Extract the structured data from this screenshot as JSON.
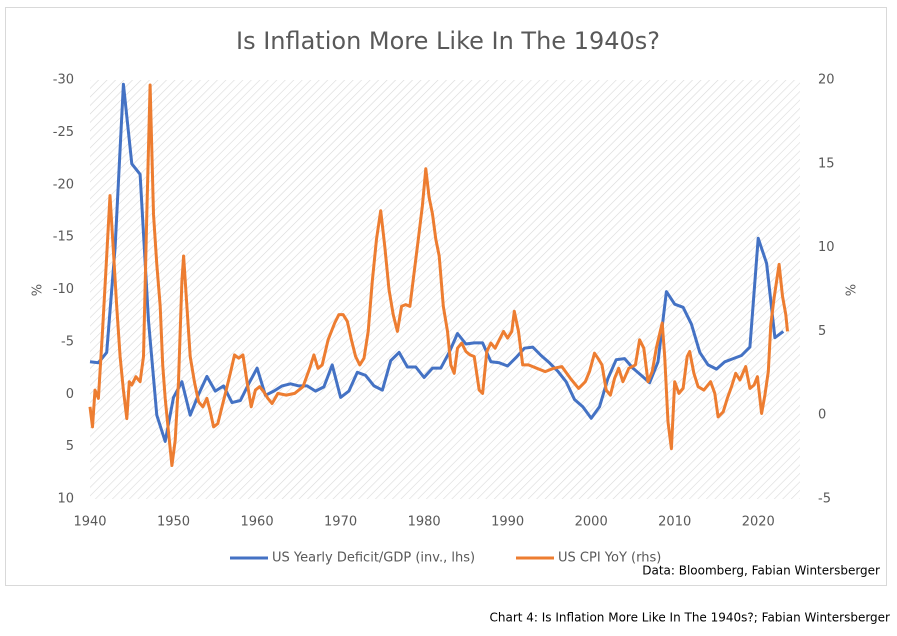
{
  "chart_data": {
    "type": "line",
    "title": "Is Inflation More Like In The 1940s?",
    "source": "Data: Bloomberg, Fabian Wintersberger",
    "caption": "Chart 4: Is Inflation More Like In The 1940s?; Fabian Wintersberger",
    "y_label": "%",
    "y2_label": "%",
    "xlim": [
      1940,
      2025
    ],
    "xticks": [
      1940,
      1950,
      1960,
      1970,
      1980,
      1990,
      2000,
      2010,
      2020
    ],
    "ylim": [
      -30,
      10
    ],
    "y_inverted": true,
    "yticks": [
      -30,
      -25,
      -20,
      -15,
      -10,
      -5,
      0,
      5,
      10
    ],
    "y2lim": [
      -5,
      20
    ],
    "y2ticks": [
      -5,
      0,
      5,
      10,
      15,
      20
    ],
    "grid": false,
    "legend": "bottom",
    "series": [
      {
        "name": "US Yearly Deficit/GDP (inv., lhs)",
        "color": "#4472c4",
        "x": [
          1940,
          1941,
          1942,
          1943,
          1944,
          1945,
          1946,
          1947,
          1948,
          1949,
          1950,
          1951,
          1952,
          1953,
          1954,
          1955,
          1956,
          1957,
          1958,
          1959,
          1960,
          1961,
          1962,
          1963,
          1964,
          1965,
          1966,
          1967,
          1968,
          1969,
          1970,
          1971,
          1972,
          1973,
          1974,
          1975,
          1976,
          1977,
          1978,
          1979,
          1980,
          1981,
          1982,
          1983,
          1984,
          1985,
          1986,
          1987,
          1988,
          1989,
          1990,
          1991,
          1992,
          1993,
          1994,
          1995,
          1996,
          1997,
          1998,
          1999,
          2000,
          2001,
          2002,
          2003,
          2004,
          2005,
          2006,
          2007,
          2008,
          2009,
          2010,
          2011,
          2012,
          2013,
          2014,
          2015,
          2016,
          2017,
          2018,
          2019,
          2020,
          2021,
          2022,
          2023
        ],
        "values": [
          -3.1,
          -3.0,
          -4.0,
          -14,
          -29.6,
          -22,
          -21,
          -7,
          2,
          4.5,
          0.3,
          -1.2,
          2,
          0,
          -1.7,
          -0.3,
          -0.8,
          0.8,
          0.6,
          -1.0,
          -2.5,
          0.1,
          -0.3,
          -0.8,
          -1.0,
          -0.8,
          -0.8,
          -0.3,
          -0.7,
          -2.8,
          0.3,
          -0.3,
          -2.1,
          -1.8,
          -0.8,
          -0.4,
          -3.2,
          -4.0,
          -2.6,
          -2.6,
          -1.6,
          -2.5,
          -2.5,
          -4.0,
          -5.8,
          -4.8,
          -4.9,
          -4.9,
          -3.1,
          -3.0,
          -2.7,
          -3.5,
          -4.4,
          -4.5,
          -3.7,
          -3.0,
          -2.2,
          -1.2,
          0.5,
          1.2,
          2.3,
          1.2,
          -1.5,
          -3.3,
          -3.4,
          -2.5,
          -1.8,
          -1.1,
          -3.1,
          -9.8,
          -8.6,
          -8.3,
          -6.7,
          -4.0,
          -2.8,
          -2.4,
          -3.1,
          -3.4,
          -3.7,
          -4.5,
          -14.9,
          -12.5,
          -5.4,
          -6.0
        ]
      },
      {
        "name": "US CPI YoY (rhs)",
        "color": "#ed7d31",
        "axis": "y2",
        "x": [
          1940.0,
          1940.3,
          1940.6,
          1941.0,
          1941.5,
          1942.0,
          1942.4,
          1942.8,
          1943.2,
          1943.6,
          1944.0,
          1944.4,
          1944.7,
          1945.0,
          1945.5,
          1946.0,
          1946.4,
          1946.8,
          1947.2,
          1947.6,
          1948.0,
          1948.4,
          1948.7,
          1949.0,
          1949.4,
          1949.8,
          1950.2,
          1950.6,
          1951.0,
          1951.2,
          1951.6,
          1952.0,
          1952.5,
          1953.0,
          1953.5,
          1954.0,
          1954.4,
          1954.8,
          1955.3,
          1955.8,
          1956.3,
          1956.8,
          1957.3,
          1957.8,
          1958.3,
          1958.8,
          1959.3,
          1959.8,
          1960.3,
          1960.8,
          1961.3,
          1961.8,
          1962.5,
          1963.5,
          1964.5,
          1965.5,
          1966.3,
          1966.8,
          1967.3,
          1967.8,
          1968.5,
          1969.3,
          1969.8,
          1970.3,
          1970.8,
          1971.3,
          1971.8,
          1972.3,
          1972.8,
          1973.3,
          1973.8,
          1974.3,
          1974.8,
          1975.3,
          1975.8,
          1976.3,
          1976.8,
          1977.3,
          1977.8,
          1978.3,
          1978.8,
          1979.3,
          1979.8,
          1980.2,
          1980.6,
          1981.0,
          1981.4,
          1981.8,
          1982.3,
          1982.8,
          1983.2,
          1983.6,
          1984.0,
          1984.5,
          1985.0,
          1985.5,
          1986.0,
          1986.6,
          1987.0,
          1987.5,
          1988.0,
          1988.5,
          1989.0,
          1989.5,
          1990.0,
          1990.5,
          1990.8,
          1991.3,
          1991.8,
          1992.5,
          1993.5,
          1994.5,
          1995.5,
          1996.5,
          1997.5,
          1998.5,
          1999.3,
          1999.8,
          2000.4,
          2000.8,
          2001.3,
          2001.8,
          2002.3,
          2002.8,
          2003.3,
          2003.8,
          2004.5,
          2005.3,
          2005.8,
          2006.3,
          2006.8,
          2007.3,
          2007.8,
          2008.5,
          2008.8,
          2009.2,
          2009.6,
          2010.0,
          2010.5,
          2011.0,
          2011.5,
          2011.8,
          2012.3,
          2012.8,
          2013.5,
          2014.3,
          2014.8,
          2015.2,
          2015.8,
          2016.3,
          2016.8,
          2017.3,
          2017.8,
          2018.5,
          2019.0,
          2019.5,
          2019.9,
          2020.4,
          2020.8,
          2021.2,
          2021.5,
          2021.9,
          2022.5,
          2022.9,
          2023.3,
          2023.5
        ],
        "values": [
          0.5,
          -0.7,
          1.5,
          1.0,
          5.0,
          9.5,
          13.1,
          9.8,
          6.5,
          3.5,
          1.5,
          -0.2,
          2.0,
          1.8,
          2.3,
          2.0,
          3.5,
          12.0,
          19.7,
          12.0,
          9.0,
          6.5,
          3.0,
          1.0,
          -1.0,
          -3.0,
          -1.5,
          2.0,
          8.0,
          9.5,
          6.5,
          3.5,
          2.0,
          0.8,
          0.5,
          1.0,
          0.2,
          -0.7,
          -0.5,
          0.5,
          1.5,
          2.5,
          3.6,
          3.4,
          3.6,
          2.0,
          0.5,
          1.5,
          1.7,
          1.4,
          1.0,
          0.7,
          1.3,
          1.2,
          1.3,
          1.7,
          2.8,
          3.6,
          2.8,
          3.0,
          4.5,
          5.5,
          6.0,
          6.0,
          5.6,
          4.5,
          3.5,
          3.0,
          3.4,
          5.0,
          8.0,
          10.5,
          12.2,
          10.0,
          7.5,
          6.0,
          5.0,
          6.5,
          6.6,
          6.5,
          8.5,
          10.5,
          12.5,
          14.7,
          13.0,
          12.0,
          10.5,
          9.5,
          6.5,
          5.0,
          3.0,
          2.5,
          4.0,
          4.3,
          3.8,
          3.6,
          3.5,
          1.5,
          1.3,
          3.8,
          4.3,
          4.0,
          4.5,
          5.0,
          4.6,
          5.0,
          6.2,
          5.0,
          3.0,
          3.0,
          2.8,
          2.6,
          2.8,
          2.9,
          2.2,
          1.6,
          2.0,
          2.6,
          3.7,
          3.4,
          3.0,
          1.5,
          1.2,
          2.2,
          2.8,
          2.0,
          2.8,
          3.0,
          4.5,
          4.0,
          2.0,
          2.6,
          4.0,
          5.5,
          3.5,
          -0.4,
          -2.0,
          2.0,
          1.3,
          1.6,
          3.5,
          3.8,
          2.5,
          1.7,
          1.5,
          2.0,
          1.3,
          -0.1,
          0.2,
          1.0,
          1.7,
          2.5,
          2.1,
          2.9,
          1.6,
          1.8,
          2.3,
          0.1,
          1.2,
          2.6,
          5.4,
          7.0,
          9.0,
          7.1,
          6.0,
          5.0
        ]
      }
    ]
  }
}
